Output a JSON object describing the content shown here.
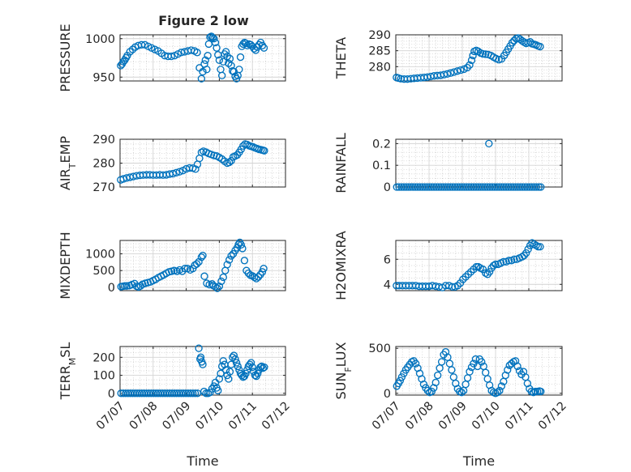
{
  "figure": {
    "title": "Figure 2 low",
    "xlabel": "Time",
    "x_tick_labels": [
      "07/07",
      "07/08",
      "07/09",
      "07/10",
      "07/11",
      "07/12"
    ],
    "marker_color": "#0072bd"
  },
  "chart_data": [
    {
      "type": "scatter",
      "name": "PRESSURE",
      "ylabel": "PRESSURE",
      "xlim": [
        0,
        5
      ],
      "ylim": [
        945,
        1005
      ],
      "yticks": [
        950,
        1000
      ],
      "yminor_step": 10,
      "x": [
        0.02,
        0.06,
        0.1,
        0.14,
        0.18,
        0.22,
        0.3,
        0.38,
        0.46,
        0.55,
        0.65,
        0.75,
        0.85,
        0.95,
        1.05,
        1.15,
        1.25,
        1.35,
        1.45,
        1.55,
        1.65,
        1.75,
        1.85,
        1.95,
        2.05,
        2.15,
        2.25,
        2.33,
        2.4,
        2.46,
        2.5,
        2.55,
        2.58,
        2.62,
        2.65,
        2.68,
        2.72,
        2.76,
        2.8,
        2.84,
        2.88,
        2.92,
        2.96,
        3.0,
        3.04,
        3.08,
        3.12,
        3.16,
        3.2,
        3.24,
        3.28,
        3.32,
        3.36,
        3.4,
        3.44,
        3.48,
        3.52,
        3.56,
        3.6,
        3.64,
        3.68,
        3.72,
        3.76,
        3.8,
        3.85,
        3.9,
        3.95,
        4.0,
        4.05,
        4.1,
        4.15,
        4.2,
        4.25,
        4.3,
        4.35
      ],
      "y": [
        965,
        967,
        970,
        972,
        975,
        978,
        983,
        986,
        989,
        991,
        992,
        992,
        990,
        988,
        986,
        984,
        981,
        978,
        977,
        977,
        978,
        980,
        982,
        983,
        984,
        985,
        984,
        982,
        962,
        948,
        957,
        967,
        972,
        960,
        978,
        993,
        1002,
        1003,
        1001,
        1000,
        995,
        988,
        979,
        972,
        960,
        952,
        970,
        980,
        983,
        977,
        968,
        974,
        965,
        958,
        957,
        951,
        948,
        952,
        960,
        976,
        990,
        993,
        995,
        994,
        991,
        993,
        992,
        990,
        987,
        985,
        989,
        992,
        995,
        991,
        988
      ]
    },
    {
      "type": "scatter",
      "name": "THETA",
      "ylabel": "THETA",
      "xlim": [
        0,
        5
      ],
      "ylim": [
        275.5,
        290
      ],
      "yticks": [
        280,
        285,
        290
      ],
      "yminor_step": 1,
      "x": [
        0.02,
        0.08,
        0.15,
        0.25,
        0.35,
        0.45,
        0.55,
        0.65,
        0.75,
        0.85,
        0.95,
        1.05,
        1.15,
        1.25,
        1.35,
        1.45,
        1.55,
        1.65,
        1.75,
        1.85,
        1.95,
        2.05,
        2.15,
        2.22,
        2.28,
        2.32,
        2.36,
        2.42,
        2.48,
        2.55,
        2.62,
        2.7,
        2.78,
        2.86,
        2.94,
        3.02,
        3.1,
        3.18,
        3.26,
        3.32,
        3.38,
        3.44,
        3.5,
        3.56,
        3.62,
        3.68,
        3.74,
        3.8,
        3.86,
        3.92,
        3.98,
        4.04,
        4.1,
        4.16,
        4.22,
        4.28,
        4.34
      ],
      "y": [
        276.6,
        276.4,
        276.2,
        276.1,
        276.1,
        276.2,
        276.3,
        276.4,
        276.5,
        276.6,
        276.7,
        276.9,
        277.1,
        277.2,
        277.3,
        277.5,
        277.7,
        278.0,
        278.3,
        278.6,
        278.9,
        279.2,
        279.7,
        280.5,
        282.0,
        283.5,
        284.8,
        285.1,
        284.8,
        284.3,
        284.0,
        283.9,
        283.8,
        283.5,
        283.0,
        282.5,
        282.2,
        282.4,
        283.5,
        284.5,
        285.5,
        286.5,
        287.5,
        288.2,
        288.8,
        289.0,
        288.6,
        288.1,
        287.7,
        287.3,
        287.5,
        287.8,
        287.2,
        287.0,
        286.8,
        286.5,
        286.3
      ]
    },
    {
      "type": "scatter",
      "name": "AIR_TEMP",
      "ylabel": "AIR_TEMP",
      "xlim": [
        0,
        5
      ],
      "ylim": [
        270,
        290
      ],
      "yticks": [
        270,
        280,
        290
      ],
      "yminor_step": 2,
      "x": [
        0.02,
        0.1,
        0.2,
        0.3,
        0.4,
        0.5,
        0.6,
        0.7,
        0.8,
        0.9,
        1.0,
        1.1,
        1.2,
        1.3,
        1.4,
        1.5,
        1.6,
        1.7,
        1.8,
        1.9,
        2.0,
        2.1,
        2.2,
        2.28,
        2.34,
        2.4,
        2.46,
        2.52,
        2.6,
        2.68,
        2.76,
        2.84,
        2.92,
        3.0,
        3.08,
        3.16,
        3.24,
        3.3,
        3.36,
        3.42,
        3.48,
        3.54,
        3.6,
        3.66,
        3.72,
        3.78,
        3.84,
        3.9,
        3.96,
        4.02,
        4.08,
        4.14,
        4.2,
        4.26,
        4.32,
        4.36
      ],
      "y": [
        273.0,
        273.4,
        273.8,
        274.1,
        274.4,
        274.7,
        274.9,
        275.0,
        275.1,
        275.1,
        275.0,
        275.0,
        275.1,
        275.0,
        275.1,
        275.4,
        275.6,
        276.0,
        276.4,
        276.9,
        277.6,
        278.0,
        277.9,
        277.5,
        279.5,
        282.0,
        284.5,
        285.0,
        284.6,
        284.0,
        283.6,
        283.2,
        283.0,
        282.4,
        281.7,
        280.8,
        280.0,
        280.3,
        281.0,
        282.6,
        283.0,
        283.4,
        284.5,
        285.8,
        287.2,
        288.0,
        287.8,
        287.3,
        287.0,
        286.8,
        286.4,
        286.1,
        285.8,
        285.6,
        285.4,
        285.2
      ]
    },
    {
      "type": "scatter",
      "name": "RAINFALL",
      "ylabel": "RAINFALL",
      "xlim": [
        0,
        5
      ],
      "ylim": [
        0,
        0.22
      ],
      "yticks": [
        0,
        0.1,
        0.2
      ],
      "yminor_step": 0.02,
      "x": [
        0.03,
        0.1,
        0.17,
        0.24,
        0.31,
        0.38,
        0.45,
        0.52,
        0.59,
        0.66,
        0.73,
        0.8,
        0.87,
        0.94,
        1.01,
        1.08,
        1.15,
        1.22,
        1.29,
        1.36,
        1.43,
        1.5,
        1.57,
        1.64,
        1.71,
        1.78,
        1.85,
        1.92,
        1.99,
        2.06,
        2.13,
        2.2,
        2.27,
        2.34,
        2.41,
        2.48,
        2.55,
        2.62,
        2.69,
        2.76,
        2.83,
        2.9,
        2.97,
        3.04,
        3.11,
        3.18,
        3.25,
        3.32,
        3.39,
        3.46,
        3.53,
        3.6,
        3.67,
        3.74,
        3.81,
        3.88,
        3.95,
        4.02,
        4.09,
        4.16,
        4.23,
        4.3,
        4.36,
        2.8
      ],
      "y": [
        0,
        0,
        0,
        0,
        0,
        0,
        0,
        0,
        0,
        0,
        0,
        0,
        0,
        0,
        0,
        0,
        0,
        0,
        0,
        0,
        0,
        0,
        0,
        0,
        0,
        0,
        0,
        0,
        0,
        0,
        0,
        0,
        0,
        0,
        0,
        0,
        0,
        0,
        0,
        0,
        0,
        0,
        0,
        0,
        0,
        0,
        0,
        0,
        0,
        0,
        0,
        0,
        0,
        0,
        0,
        0,
        0,
        0,
        0,
        0,
        0,
        0,
        0,
        0.2
      ]
    },
    {
      "type": "scatter",
      "name": "MIXDEPTH",
      "ylabel": "MIXDEPTH",
      "xlim": [
        0,
        5
      ],
      "ylim": [
        -100,
        1400
      ],
      "yticks": [
        0,
        500,
        1000
      ],
      "yminor_step": 100,
      "x": [
        0.03,
        0.08,
        0.14,
        0.2,
        0.28,
        0.36,
        0.44,
        0.5,
        0.56,
        0.62,
        0.68,
        0.76,
        0.84,
        0.92,
        1.0,
        1.08,
        1.16,
        1.24,
        1.32,
        1.4,
        1.48,
        1.56,
        1.64,
        1.72,
        1.8,
        1.88,
        1.96,
        2.04,
        2.12,
        2.2,
        2.26,
        2.32,
        2.38,
        2.46,
        2.5,
        2.55,
        2.62,
        2.7,
        2.78,
        2.82,
        2.88,
        2.94,
        3.0,
        3.06,
        3.12,
        3.18,
        3.24,
        3.3,
        3.36,
        3.42,
        3.48,
        3.54,
        3.58,
        3.62,
        3.66,
        3.7,
        3.76,
        3.82,
        3.88,
        3.94,
        4.0,
        4.06,
        4.12,
        4.18,
        4.24,
        4.3,
        4.34
      ],
      "y": [
        20,
        30,
        40,
        40,
        50,
        80,
        110,
        30,
        10,
        40,
        90,
        120,
        140,
        160,
        200,
        240,
        290,
        330,
        370,
        420,
        460,
        480,
        500,
        480,
        520,
        480,
        560,
        560,
        520,
        560,
        660,
        700,
        760,
        900,
        950,
        330,
        120,
        80,
        100,
        50,
        20,
        -30,
        30,
        180,
        300,
        500,
        680,
        820,
        940,
        1000,
        1100,
        1180,
        1280,
        1340,
        1270,
        1160,
        800,
        500,
        420,
        360,
        340,
        300,
        260,
        310,
        380,
        460,
        560
      ]
    },
    {
      "type": "scatter",
      "name": "H2OMIXRA",
      "ylabel": "H2OMIXRA",
      "xlim": [
        0,
        5
      ],
      "ylim": [
        3.5,
        7.5
      ],
      "yticks": [
        4,
        6
      ],
      "yminor_step": 0.5,
      "x": [
        0.02,
        0.1,
        0.2,
        0.3,
        0.4,
        0.5,
        0.6,
        0.7,
        0.8,
        0.9,
        1.0,
        1.1,
        1.2,
        1.3,
        1.4,
        1.5,
        1.6,
        1.7,
        1.78,
        1.86,
        1.94,
        2.02,
        2.1,
        2.18,
        2.26,
        2.34,
        2.42,
        2.48,
        2.54,
        2.62,
        2.7,
        2.76,
        2.82,
        2.88,
        2.94,
        3.0,
        3.08,
        3.16,
        3.24,
        3.32,
        3.4,
        3.48,
        3.56,
        3.64,
        3.72,
        3.8,
        3.86,
        3.92,
        3.98,
        4.04,
        4.1,
        4.16,
        4.22,
        4.28,
        4.34
      ],
      "y": [
        3.9,
        3.9,
        3.9,
        3.9,
        3.9,
        3.9,
        3.9,
        3.85,
        3.85,
        3.85,
        3.85,
        3.9,
        3.85,
        3.8,
        3.75,
        3.9,
        3.9,
        3.8,
        3.8,
        3.9,
        4.1,
        4.4,
        4.6,
        4.8,
        5.0,
        5.2,
        5.4,
        5.4,
        5.3,
        5.2,
        4.9,
        4.8,
        5.0,
        5.3,
        5.5,
        5.6,
        5.6,
        5.7,
        5.8,
        5.8,
        5.9,
        5.9,
        6.0,
        6.0,
        6.1,
        6.2,
        6.3,
        6.5,
        6.8,
        7.1,
        7.3,
        7.2,
        7.1,
        7.0,
        7.0
      ]
    },
    {
      "type": "scatter",
      "name": "TERR_MSL",
      "ylabel": "TERR_MSL",
      "xlim": [
        0,
        5
      ],
      "ylim": [
        -10,
        260
      ],
      "yticks": [
        0,
        100,
        200
      ],
      "yminor_step": 25,
      "x": [
        0.03,
        0.1,
        0.17,
        0.24,
        0.31,
        0.38,
        0.45,
        0.52,
        0.59,
        0.66,
        0.73,
        0.8,
        0.87,
        0.94,
        1.01,
        1.08,
        1.15,
        1.22,
        1.29,
        1.36,
        1.43,
        1.5,
        1.57,
        1.64,
        1.71,
        1.78,
        1.85,
        1.92,
        1.99,
        2.06,
        2.13,
        2.2,
        2.27,
        2.34,
        2.38,
        2.42,
        2.44,
        2.47,
        2.5,
        2.54,
        2.6,
        2.66,
        2.72,
        2.78,
        2.84,
        2.88,
        2.92,
        2.96,
        3.0,
        3.04,
        3.08,
        3.12,
        3.16,
        3.2,
        3.24,
        3.28,
        3.32,
        3.36,
        3.4,
        3.44,
        3.48,
        3.52,
        3.56,
        3.6,
        3.64,
        3.68,
        3.72,
        3.76,
        3.8,
        3.84,
        3.88,
        3.92,
        3.96,
        4.0,
        4.04,
        4.08,
        4.12,
        4.16,
        4.2,
        4.24,
        4.28,
        4.32,
        4.36
      ],
      "y": [
        0,
        0,
        0,
        0,
        0,
        0,
        0,
        0,
        0,
        0,
        0,
        0,
        0,
        0,
        0,
        0,
        0,
        0,
        0,
        0,
        0,
        0,
        0,
        0,
        0,
        0,
        0,
        0,
        0,
        0,
        0,
        0,
        0,
        0,
        250,
        190,
        200,
        175,
        160,
        10,
        0,
        0,
        5,
        25,
        40,
        60,
        30,
        15,
        80,
        110,
        150,
        180,
        160,
        130,
        100,
        80,
        120,
        160,
        200,
        210,
        190,
        170,
        150,
        130,
        110,
        100,
        90,
        95,
        110,
        130,
        150,
        160,
        170,
        145,
        120,
        100,
        95,
        110,
        130,
        145,
        150,
        140,
        145
      ]
    },
    {
      "type": "scatter",
      "name": "SUN_FLUX",
      "ylabel": "SUN_FLUX",
      "xlim": [
        0,
        5
      ],
      "ylim": [
        -20,
        520
      ],
      "yticks": [
        0,
        500
      ],
      "yminor_step": 100,
      "x": [
        0.03,
        0.08,
        0.13,
        0.18,
        0.24,
        0.3,
        0.36,
        0.42,
        0.48,
        0.54,
        0.6,
        0.66,
        0.72,
        0.78,
        0.84,
        0.9,
        0.96,
        1.02,
        1.08,
        1.14,
        1.2,
        1.26,
        1.32,
        1.38,
        1.44,
        1.5,
        1.56,
        1.62,
        1.68,
        1.74,
        1.8,
        1.86,
        1.92,
        1.98,
        2.04,
        2.1,
        2.16,
        2.22,
        2.28,
        2.34,
        2.4,
        2.46,
        2.52,
        2.58,
        2.64,
        2.7,
        2.76,
        2.82,
        2.88,
        2.94,
        3.0,
        3.06,
        3.12,
        3.18,
        3.24,
        3.3,
        3.36,
        3.42,
        3.48,
        3.54,
        3.6,
        3.66,
        3.72,
        3.78,
        3.84,
        3.9,
        3.96,
        4.02,
        4.08,
        4.14,
        4.2,
        4.26,
        4.32,
        4.36
      ],
      "y": [
        80,
        110,
        140,
        180,
        220,
        260,
        290,
        320,
        350,
        360,
        330,
        280,
        220,
        160,
        100,
        60,
        30,
        10,
        20,
        60,
        120,
        200,
        280,
        350,
        430,
        460,
        400,
        330,
        260,
        180,
        110,
        50,
        20,
        10,
        30,
        100,
        170,
        240,
        290,
        330,
        380,
        300,
        380,
        350,
        300,
        230,
        160,
        90,
        30,
        10,
        0,
        10,
        30,
        80,
        130,
        200,
        260,
        310,
        330,
        350,
        360,
        300,
        250,
        210,
        240,
        180,
        110,
        50,
        20,
        10,
        20,
        20,
        25,
        20
      ]
    }
  ]
}
